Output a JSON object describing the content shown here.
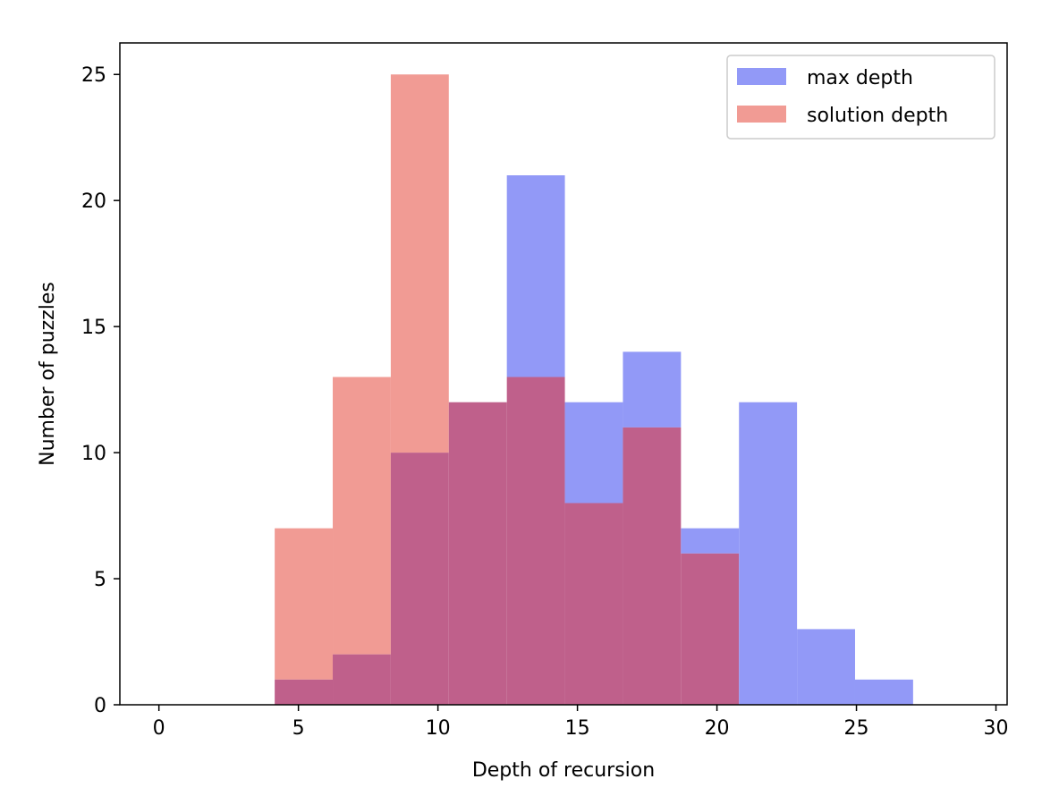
{
  "chart_data": {
    "type": "bar",
    "subtype": "overlaid-histogram",
    "title": "",
    "xlabel": "Depth of recursion",
    "ylabel": "Number of puzzles",
    "xlim": [
      -1.4,
      30.4
    ],
    "ylim": [
      0,
      26.25
    ],
    "xticks": [
      0,
      5,
      10,
      15,
      20,
      25,
      30
    ],
    "yticks": [
      0,
      5,
      10,
      15,
      20,
      25
    ],
    "bin_edges": [
      4.15,
      6.23,
      8.31,
      10.39,
      12.47,
      14.55,
      16.63,
      18.71,
      20.79,
      22.87,
      24.95,
      27.03
    ],
    "series": [
      {
        "name": "max depth",
        "color": "#9299f7",
        "values": [
          1,
          2,
          10,
          12,
          21,
          12,
          14,
          7,
          12,
          3,
          1
        ]
      },
      {
        "name": "solution depth",
        "color": "#f19b94",
        "values": [
          7,
          13,
          25,
          12,
          13,
          8,
          11,
          6,
          0,
          0,
          0
        ]
      }
    ],
    "overlap_color": "#bf608b",
    "legend_position": "top-right",
    "grid": false
  }
}
